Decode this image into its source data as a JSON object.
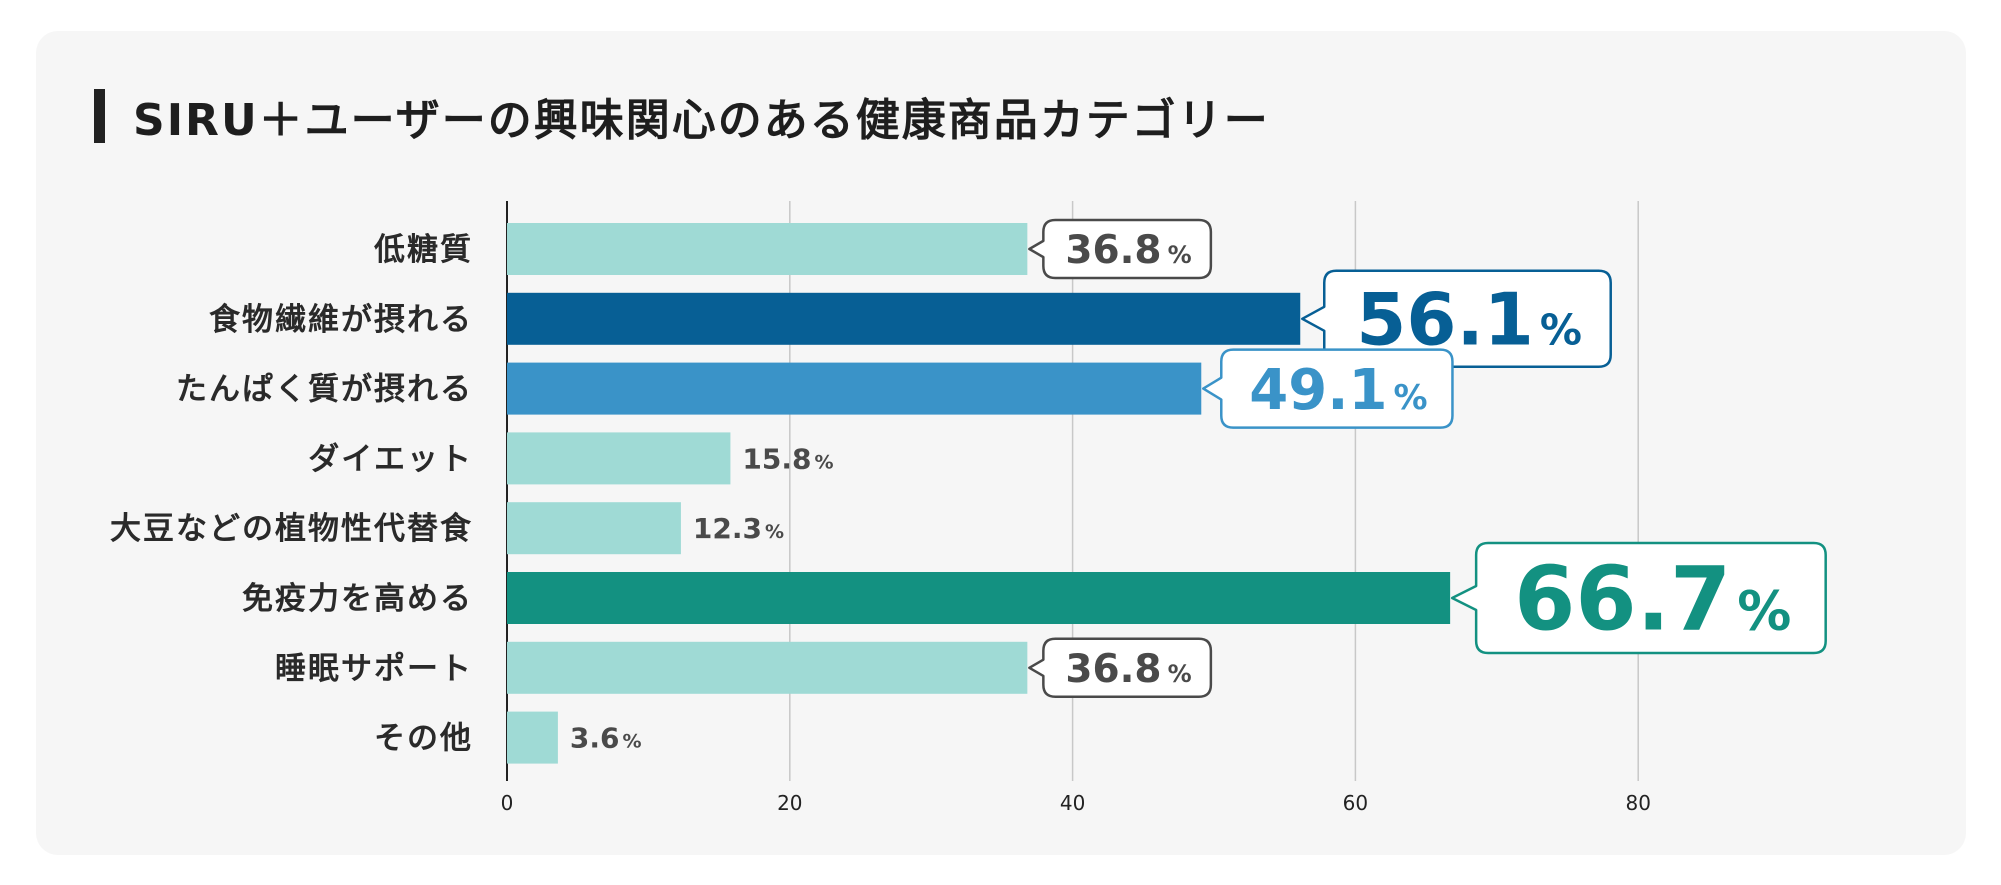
{
  "title": "SIRU＋ユーザーの興味関心のある健康商品カテゴリー",
  "colors": {
    "background": "#f6f6f6",
    "grid": "#c8c8c8",
    "axis": "#222222",
    "default_bar": "#9fdad5",
    "default_text": "#4a4a4a"
  },
  "chart_data": {
    "type": "bar",
    "orientation": "horizontal",
    "title": "SIRU＋ユーザーの興味関心のある健康商品カテゴリー",
    "xlabel": "",
    "ylabel": "",
    "xlim": [
      0,
      100
    ],
    "xticks": [
      0,
      20,
      40,
      60,
      80
    ],
    "grid": true,
    "unit": "%",
    "categories": [
      "低糖質",
      "食物繊維が摂れる",
      "たんぱく質が摂れる",
      "ダイエット",
      "大豆などの植物性代替食",
      "免疫力を高める",
      "睡眠サポート",
      "その他"
    ],
    "values": [
      36.8,
      56.1,
      49.1,
      15.8,
      12.3,
      66.7,
      36.8,
      3.6
    ],
    "value_labels": [
      "36.8",
      "56.1",
      "49.1",
      "15.8",
      "12.3",
      "66.7",
      "36.8",
      "3.6"
    ],
    "percent_sign": "%",
    "bar_colors": [
      "#9fdad5",
      "#075f95",
      "#3a93c8",
      "#9fdad5",
      "#9fdad5",
      "#139181",
      "#9fdad5",
      "#9fdad5"
    ],
    "label_colors": [
      "#4a4a4a",
      "#075f95",
      "#3a93c8",
      "#4a4a4a",
      "#4a4a4a",
      "#139181",
      "#4a4a4a",
      "#4a4a4a"
    ],
    "label_styles": [
      "callout-small",
      "callout-large",
      "callout-medium",
      "plain",
      "plain",
      "callout-xlarge",
      "callout-small",
      "plain"
    ]
  }
}
